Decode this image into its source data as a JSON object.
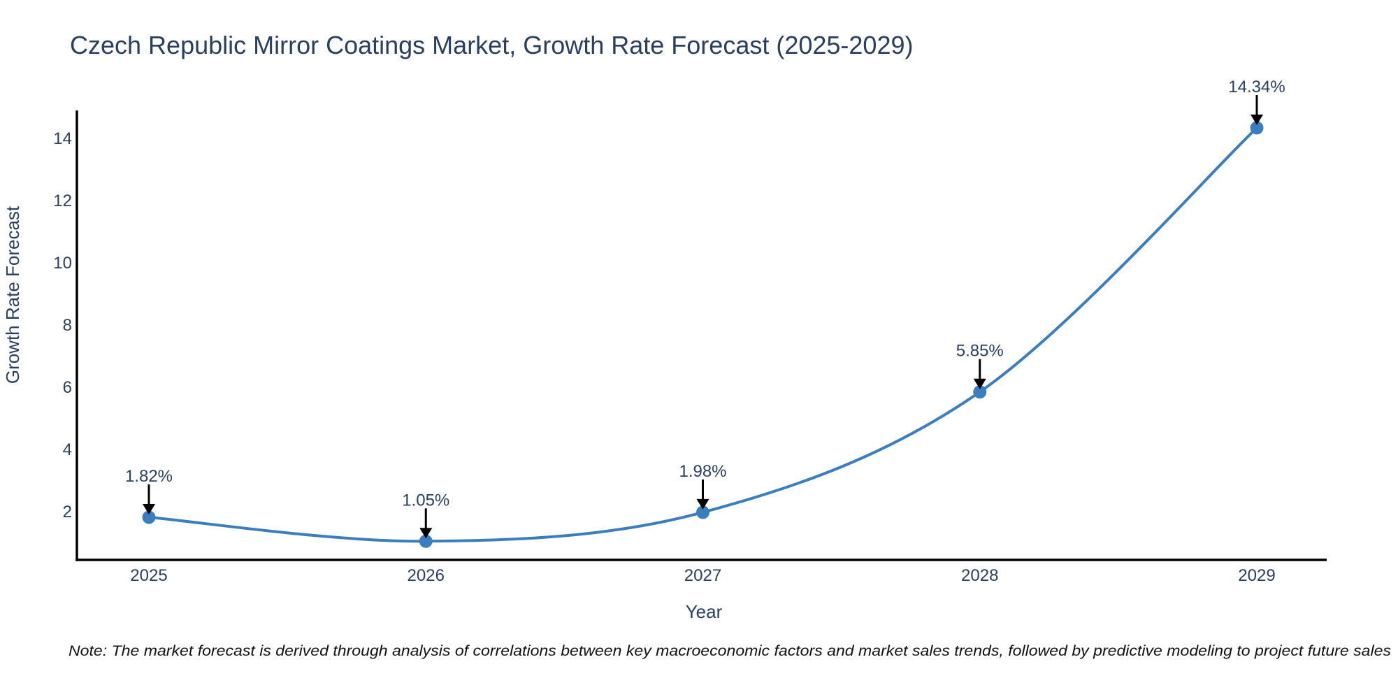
{
  "note": "Note: The market forecast is derived through analysis of correlations between key macroeconomic factors and market sales trends, followed by predictive modeling to project future sales",
  "colors": {
    "line": "#3b7ebf",
    "marker": "#3b7ebf",
    "axis": "#000000",
    "arrow": "#000000",
    "text": "#2a3f5f",
    "note_text": "#111111",
    "background": "#ffffff"
  },
  "chart_data": {
    "type": "line",
    "title": "Czech Republic Mirror Coatings Market, Growth Rate Forecast (2025-2029)",
    "xlabel": "Year",
    "ylabel": "Growth Rate Forecast",
    "x": [
      "2025",
      "2026",
      "2027",
      "2028",
      "2029"
    ],
    "values": [
      1.82,
      1.05,
      1.98,
      5.85,
      14.34
    ],
    "point_labels": [
      "1.82%",
      "1.05%",
      "1.98%",
      "5.85%",
      "14.34%"
    ],
    "yticks": [
      2,
      4,
      6,
      8,
      10,
      12,
      14
    ],
    "ylim": [
      0.45,
      14.9
    ],
    "grid": false,
    "legend": false,
    "line_shape": "spline",
    "markers": true
  }
}
